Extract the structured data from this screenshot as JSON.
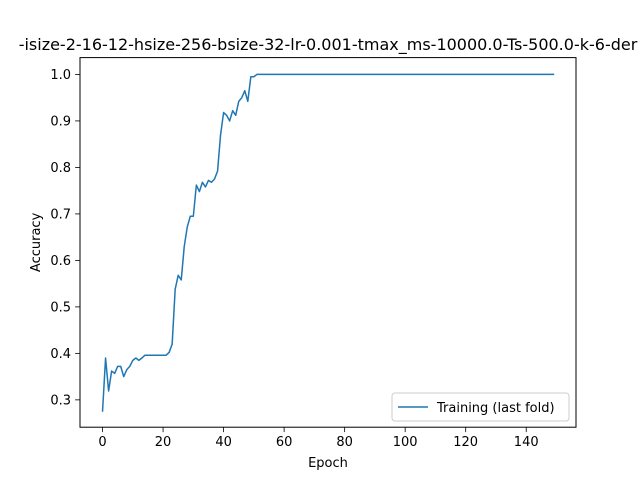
{
  "chart_data": {
    "type": "line",
    "title": "-isize-2-16-12-hsize-256-bsize-32-lr-0.001-tmax_ms-10000.0-Ts-500.0-k-6-der",
    "xlabel": "Epoch",
    "ylabel": "Accuracy",
    "xlim": [
      -7.45,
      156.45
    ],
    "ylim": [
      0.2412,
      1.0362
    ],
    "xticks": [
      0,
      20,
      40,
      60,
      80,
      100,
      120,
      140
    ],
    "yticks": [
      0.3,
      0.4,
      0.5,
      0.6,
      0.7,
      0.8,
      0.9,
      1.0
    ],
    "ytick_labels": [
      "0.3",
      "0.4",
      "0.5",
      "0.6",
      "0.7",
      "0.8",
      "0.9",
      "1.0"
    ],
    "grid": false,
    "legend_position": "lower-right",
    "series": [
      {
        "name": "Training (last fold)",
        "color": "#1f77b4",
        "x": [
          0,
          1,
          2,
          3,
          4,
          5,
          6,
          7,
          8,
          9,
          10,
          11,
          12,
          13,
          14,
          15,
          16,
          17,
          18,
          19,
          20,
          21,
          22,
          23,
          24,
          25,
          26,
          27,
          28,
          29,
          30,
          31,
          32,
          33,
          34,
          35,
          36,
          37,
          38,
          39,
          40,
          41,
          42,
          43,
          44,
          45,
          46,
          47,
          48,
          49,
          50,
          51,
          149
        ],
        "y": [
          0.276,
          0.39,
          0.319,
          0.362,
          0.357,
          0.372,
          0.372,
          0.35,
          0.365,
          0.372,
          0.385,
          0.39,
          0.385,
          0.39,
          0.396,
          0.396,
          0.396,
          0.396,
          0.396,
          0.396,
          0.396,
          0.396,
          0.402,
          0.42,
          0.538,
          0.568,
          0.558,
          0.63,
          0.672,
          0.695,
          0.695,
          0.762,
          0.748,
          0.768,
          0.758,
          0.772,
          0.768,
          0.775,
          0.792,
          0.87,
          0.918,
          0.912,
          0.9,
          0.922,
          0.912,
          0.942,
          0.95,
          0.965,
          0.942,
          0.995,
          0.995,
          1.0,
          1.0
        ]
      }
    ]
  }
}
